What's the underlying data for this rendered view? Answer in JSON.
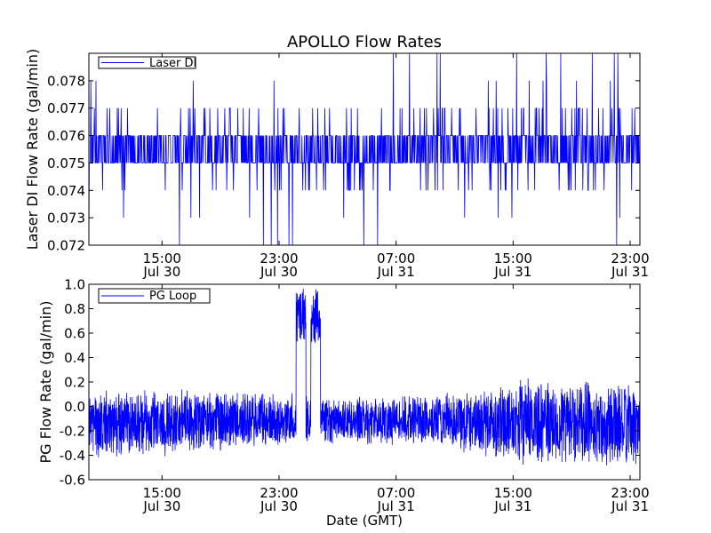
{
  "figure": {
    "title": "APOLLO Flow Rates",
    "xlabel": "Date (GMT)"
  },
  "chart_data": [
    {
      "type": "line",
      "title": "APOLLO Flow Rates",
      "xlabel": "",
      "ylabel": "Laser DI Flow Rate (gal/min)",
      "ylim": [
        0.072,
        0.079
      ],
      "yticks": [
        "0.072",
        "0.073",
        "0.074",
        "0.075",
        "0.076",
        "0.077",
        "0.078"
      ],
      "ytick_values": [
        0.072,
        0.073,
        0.074,
        0.075,
        0.076,
        0.077,
        0.078
      ],
      "xlim": [
        "2014-07-30 10:00",
        "2014-07-31 23:40"
      ],
      "xticks": [
        {
          "line1": "15:00",
          "line2": "Jul 30",
          "t": "2014-07-30 15:00"
        },
        {
          "line1": "23:00",
          "line2": "Jul 30",
          "t": "2014-07-30 23:00"
        },
        {
          "line1": "07:00",
          "line2": "Jul 31",
          "t": "2014-07-31 07:00"
        },
        {
          "line1": "15:00",
          "line2": "Jul 31",
          "t": "2014-07-31 15:00"
        },
        {
          "line1": "23:00",
          "line2": "Jul 31",
          "t": "2014-07-31 23:00"
        }
      ],
      "legend_position": "top-left",
      "grid": false,
      "series": [
        {
          "name": "Laser DI",
          "color": "#0000ff",
          "band_low": 0.075,
          "band_high": 0.076,
          "spike_values": [
            0.072,
            0.073,
            0.074,
            0.077,
            0.078,
            0.079
          ],
          "description_values": "rapid oscillation between 0.075 and 0.076 with frequent spikes to 0.073-0.078"
        }
      ]
    },
    {
      "type": "line",
      "title": "",
      "xlabel": "Date (GMT)",
      "ylabel": "PG Flow Rate (gal/min)",
      "ylim": [
        -0.6,
        1.0
      ],
      "yticks": [
        "-0.6",
        "-0.4",
        "-0.2",
        "0.0",
        "0.2",
        "0.4",
        "0.6",
        "0.8",
        "1.0"
      ],
      "ytick_values": [
        -0.6,
        -0.4,
        -0.2,
        0.0,
        0.2,
        0.4,
        0.6,
        0.8,
        1.0
      ],
      "xlim": [
        "2014-07-30 10:00",
        "2014-07-31 23:40"
      ],
      "xticks": [
        {
          "line1": "15:00",
          "line2": "Jul 30",
          "t": "2014-07-30 15:00"
        },
        {
          "line1": "23:00",
          "line2": "Jul 30",
          "t": "2014-07-30 23:00"
        },
        {
          "line1": "07:00",
          "line2": "Jul 31",
          "t": "2014-07-31 07:00"
        },
        {
          "line1": "15:00",
          "line2": "Jul 31",
          "t": "2014-07-31 15:00"
        },
        {
          "line1": "23:00",
          "line2": "Jul 31",
          "t": "2014-07-31 23:00"
        }
      ],
      "legend_position": "top-left",
      "grid": false,
      "series": [
        {
          "name": "PG Loop",
          "color": "#0000ff",
          "envelope_low": [
            {
              "t": "2014-07-30 10:00",
              "v": -0.45
            },
            {
              "t": "2014-07-30 20:00",
              "v": -0.38
            },
            {
              "t": "2014-07-31 03:00",
              "v": -0.3
            },
            {
              "t": "2014-07-31 10:00",
              "v": -0.35
            },
            {
              "t": "2014-07-31 16:00",
              "v": -0.5
            },
            {
              "t": "2014-07-31 23:40",
              "v": -0.52
            }
          ],
          "envelope_high": [
            {
              "t": "2014-07-30 10:00",
              "v": 0.15
            },
            {
              "t": "2014-07-30 20:00",
              "v": 0.15
            },
            {
              "t": "2014-07-31 03:00",
              "v": 0.08
            },
            {
              "t": "2014-07-31 10:00",
              "v": 0.12
            },
            {
              "t": "2014-07-31 16:00",
              "v": 0.24
            },
            {
              "t": "2014-07-31 23:40",
              "v": 0.2
            }
          ],
          "peaks": [
            {
              "t": "2014-07-31 00:30",
              "v": 0.97
            },
            {
              "t": "2014-07-31 01:30",
              "v": 0.97
            }
          ]
        }
      ]
    }
  ]
}
